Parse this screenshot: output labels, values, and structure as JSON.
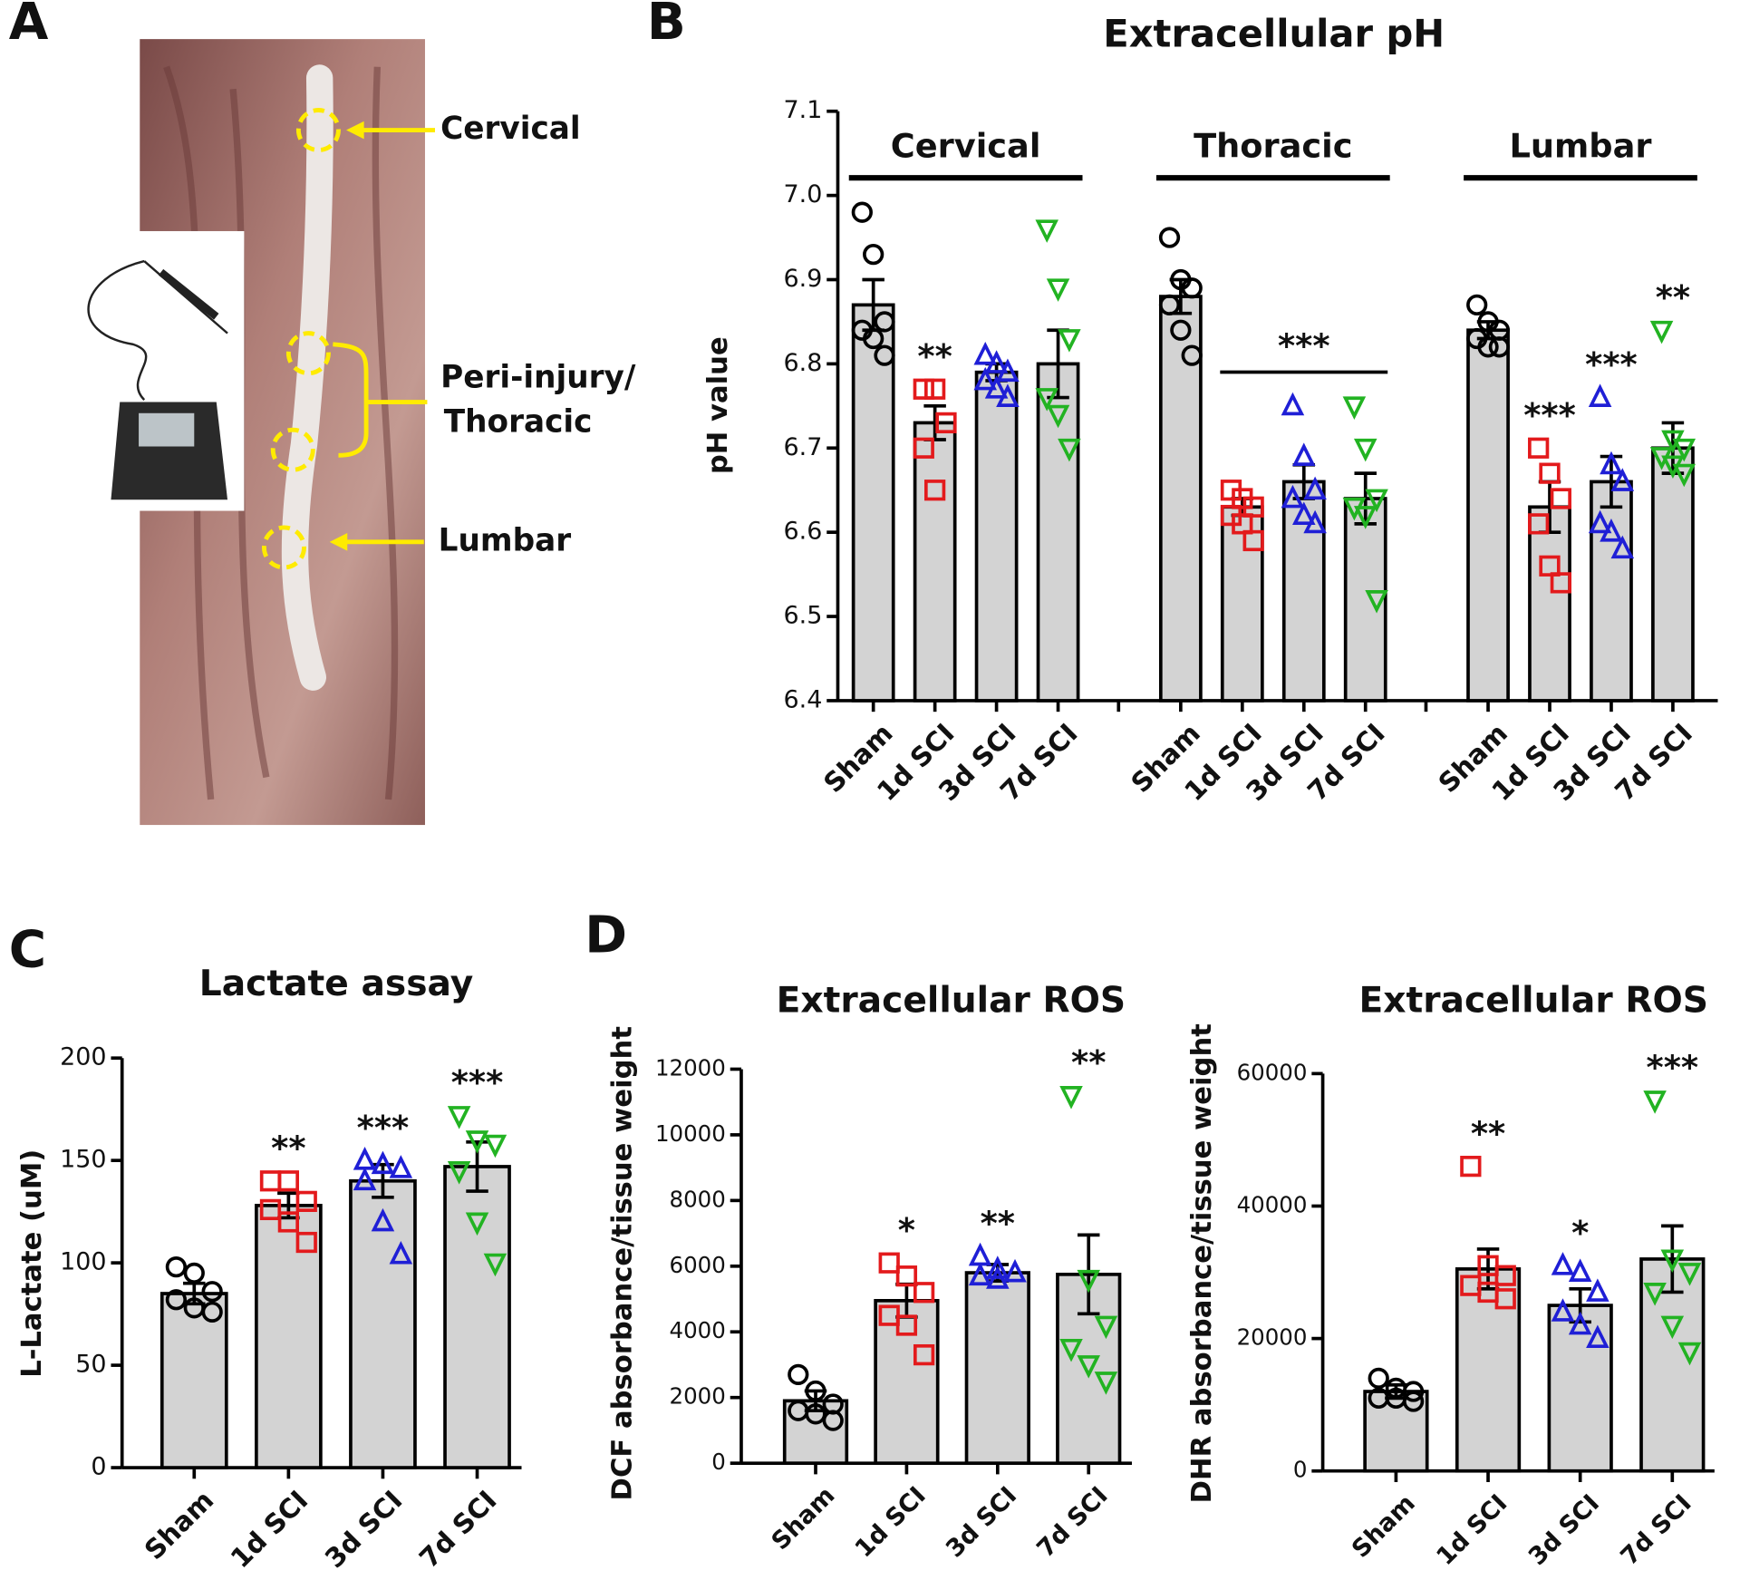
{
  "panel_labels": [
    "A",
    "B",
    "C",
    "D"
  ],
  "photo_labels": [
    "Cervical",
    "Peri-injury/",
    "Thoracic",
    "Lumbar"
  ],
  "chart_data": [
    {
      "type": "bar",
      "title": "Extracellular pH",
      "ylabel": "pH value",
      "ylim": [
        6.4,
        7.1
      ],
      "yticks": [
        6.4,
        6.5,
        6.6,
        6.7,
        6.8,
        6.9,
        {
          "value": 7,
          "label": "7.0"
        },
        7.1
      ],
      "groups": [
        "Cervical",
        "Thoracic",
        "Lumbar"
      ],
      "categories": [
        "Sham",
        "1d SCI",
        "3d SCI",
        "7d SCI",
        "Sham",
        "1d SCI",
        "3d SCI",
        "7d SCI",
        "Sham",
        "1d SCI",
        "3d SCI",
        "7d SCI"
      ],
      "values": [
        6.87,
        6.73,
        6.79,
        6.8,
        6.88,
        6.63,
        6.66,
        6.64,
        6.84,
        6.63,
        6.66,
        6.7
      ],
      "errors": [
        0.03,
        0.02,
        0.01,
        0.04,
        0.02,
        0.01,
        0.02,
        0.03,
        0.01,
        0.03,
        0.03,
        0.03
      ],
      "points": [
        [
          6.98,
          6.93,
          6.85,
          6.84,
          6.83,
          6.81
        ],
        [
          6.77,
          6.77,
          6.73,
          6.7,
          6.65
        ],
        [
          6.81,
          6.8,
          6.79,
          6.78,
          6.77,
          6.76
        ],
        [
          6.96,
          6.89,
          6.83,
          6.76,
          6.74,
          6.7
        ],
        [
          6.95,
          6.9,
          6.89,
          6.87,
          6.84,
          6.81
        ],
        [
          6.65,
          6.64,
          6.63,
          6.62,
          6.61,
          6.59
        ],
        [
          6.75,
          6.69,
          6.65,
          6.64,
          6.62,
          6.61
        ],
        [
          6.75,
          6.7,
          6.64,
          6.63,
          6.62,
          6.52
        ],
        [
          6.87,
          6.85,
          6.84,
          6.83,
          6.82,
          6.82
        ],
        [
          6.7,
          6.67,
          6.64,
          6.61,
          6.56,
          6.54
        ],
        [
          6.76,
          6.68,
          6.66,
          6.61,
          6.6,
          6.58
        ],
        [
          6.84,
          6.71,
          6.7,
          6.69,
          6.68,
          6.67
        ]
      ],
      "colors": [
        "#000000",
        "#e31a1c",
        "#1f1fd6",
        "#22b322",
        "#000000",
        "#e31a1c",
        "#1f1fd6",
        "#22b322",
        "#000000",
        "#e31a1c",
        "#1f1fd6",
        "#22b322"
      ],
      "markers": [
        "circle",
        "square",
        "triangle-up",
        "triangle-down",
        "circle",
        "square",
        "triangle-up",
        "triangle-down",
        "circle",
        "square",
        "triangle-up",
        "triangle-down"
      ],
      "bar_color": "#d3d3d3",
      "annotations": [
        null,
        "**",
        null,
        null,
        null,
        null,
        "***",
        null,
        null,
        "***",
        "***",
        "**"
      ]
    },
    {
      "type": "bar",
      "title": "Lactate assay",
      "ylabel": "L-Lactate (uM)",
      "ylim": [
        0,
        200
      ],
      "yticks": [
        0,
        50,
        100,
        150,
        200
      ],
      "categories": [
        "Sham",
        "1d SCI",
        "3d SCI",
        "7d SCI"
      ],
      "values": [
        85,
        128,
        140,
        147
      ],
      "errors": [
        5,
        6,
        8,
        12
      ],
      "points": [
        [
          98,
          95,
          86,
          82,
          78,
          76
        ],
        [
          140,
          140,
          130,
          126,
          120,
          110
        ],
        [
          150,
          148,
          146,
          140,
          120,
          104
        ],
        [
          172,
          160,
          158,
          145,
          120,
          100
        ]
      ],
      "colors": [
        "#000000",
        "#e31a1c",
        "#1f1fd6",
        "#22b322"
      ],
      "markers": [
        "circle",
        "square",
        "triangle-up",
        "triangle-down"
      ],
      "bar_color": "#d3d3d3",
      "annotations": [
        null,
        "**",
        "***",
        "***"
      ]
    },
    {
      "type": "bar",
      "title": "Extracellular ROS",
      "ylabel": "DCF absorbance/tissue weight",
      "ylim": [
        0,
        12000
      ],
      "yticks": [
        0,
        2000,
        4000,
        6000,
        8000,
        10000,
        12000
      ],
      "categories": [
        "Sham",
        "1d SCI",
        "3d SCI",
        "7d SCI"
      ],
      "values": [
        1900,
        4950,
        5800,
        5750
      ],
      "errors": [
        300,
        500,
        250,
        1200
      ],
      "points": [
        [
          2700,
          2200,
          1800,
          1600,
          1500,
          1300
        ],
        [
          6100,
          5700,
          5200,
          4500,
          4200,
          3300
        ],
        [
          6300,
          5900,
          5800,
          5700,
          5600
        ],
        [
          11200,
          5600,
          4200,
          3500,
          3000,
          2500
        ]
      ],
      "colors": [
        "#000000",
        "#e31a1c",
        "#1f1fd6",
        "#22b322"
      ],
      "markers": [
        "circle",
        "square",
        "triangle-up",
        "triangle-down"
      ],
      "bar_color": "#d3d3d3",
      "annotations": [
        null,
        "*",
        "**",
        "**"
      ]
    },
    {
      "type": "bar",
      "title": "Extracellular ROS",
      "ylabel": "DHR absorbance/tissue weight",
      "ylim": [
        0,
        60000
      ],
      "yticks": [
        0,
        20000,
        40000,
        60000
      ],
      "categories": [
        "Sham",
        "1d SCI",
        "3d SCI",
        "7d SCI"
      ],
      "values": [
        12000,
        30500,
        25000,
        32000
      ],
      "errors": [
        1000,
        3000,
        2500,
        5000
      ],
      "points": [
        [
          14000,
          12500,
          12000,
          11000,
          11000,
          10500
        ],
        [
          46000,
          31000,
          29500,
          28000,
          27000,
          26000
        ],
        [
          31000,
          30000,
          27000,
          24000,
          22000,
          20000
        ],
        [
          56000,
          32000,
          30000,
          27000,
          22000,
          18000
        ]
      ],
      "colors": [
        "#000000",
        "#e31a1c",
        "#1f1fd6",
        "#22b322"
      ],
      "markers": [
        "circle",
        "square",
        "triangle-up",
        "triangle-down"
      ],
      "bar_color": "#d3d3d3",
      "annotations": [
        null,
        "**",
        "*",
        "***"
      ]
    }
  ]
}
